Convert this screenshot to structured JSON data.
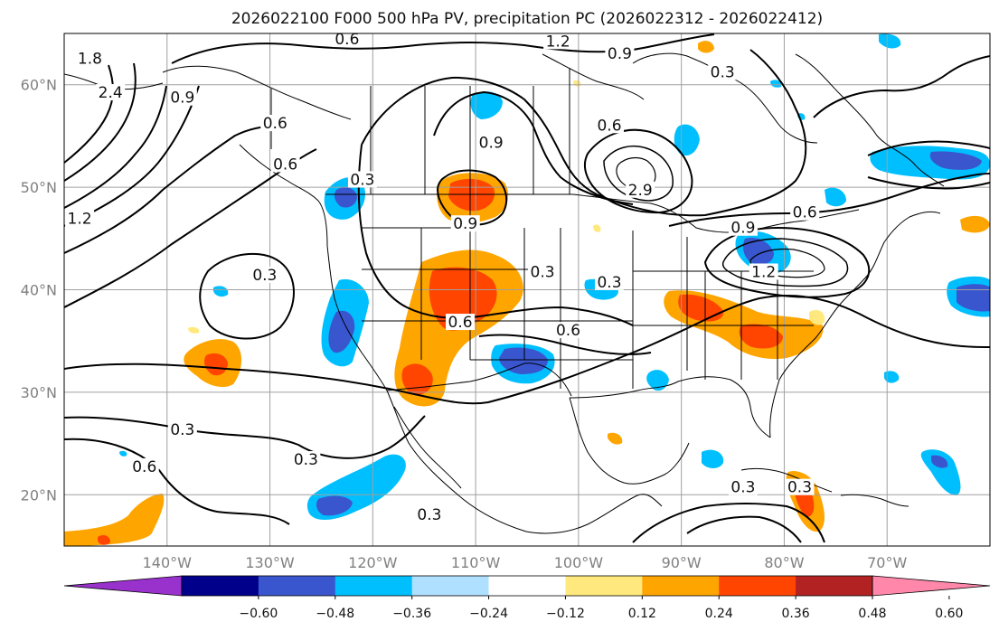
{
  "title": "2026022100 F000 500 hPa PV, precipitation PC (2026022312 - 2026022412)",
  "map": {
    "lon_range": [
      -150,
      -60
    ],
    "lat_range": [
      15,
      65
    ],
    "lon_ticks": [
      {
        "value": -140,
        "label": "140°W"
      },
      {
        "value": -130,
        "label": "130°W"
      },
      {
        "value": -120,
        "label": "120°W"
      },
      {
        "value": -110,
        "label": "110°W"
      },
      {
        "value": -100,
        "label": "100°W"
      },
      {
        "value": -90,
        "label": "90°W"
      },
      {
        "value": -80,
        "label": "80°W"
      },
      {
        "value": -70,
        "label": "70°W"
      }
    ],
    "lat_ticks": [
      {
        "value": 20,
        "label": "20°N"
      },
      {
        "value": 30,
        "label": "30°N"
      },
      {
        "value": 40,
        "label": "40°N"
      },
      {
        "value": 50,
        "label": "50°N"
      },
      {
        "value": 60,
        "label": "60°N"
      }
    ],
    "contour_labels": [
      {
        "text": "0.6",
        "lon": -122.5,
        "lat": 64.2
      },
      {
        "text": "1.2",
        "lon": -102,
        "lat": 64.0
      },
      {
        "text": "0.9",
        "lon": -96,
        "lat": 62.8
      },
      {
        "text": "0.3",
        "lon": -86,
        "lat": 61.0
      },
      {
        "text": "1.8",
        "lon": -147.5,
        "lat": 62.3
      },
      {
        "text": "2.4",
        "lon": -145.5,
        "lat": 59.0
      },
      {
        "text": "0.9",
        "lon": -138.5,
        "lat": 58.5
      },
      {
        "text": "0.6",
        "lon": -129.5,
        "lat": 56.0
      },
      {
        "text": "0.6",
        "lon": -128.5,
        "lat": 52.0
      },
      {
        "text": "0.3",
        "lon": -121,
        "lat": 50.5
      },
      {
        "text": "0.9",
        "lon": -108.5,
        "lat": 54.1
      },
      {
        "text": "0.6",
        "lon": -97,
        "lat": 55.8
      },
      {
        "text": "2.9",
        "lon": -94,
        "lat": 49.5
      },
      {
        "text": "0.9",
        "lon": -111,
        "lat": 46.2
      },
      {
        "text": "0.6",
        "lon": -78,
        "lat": 47.3
      },
      {
        "text": "0.9",
        "lon": -84,
        "lat": 45.8
      },
      {
        "text": "1.2",
        "lon": -82,
        "lat": 41.5
      },
      {
        "text": "0.3",
        "lon": -103.5,
        "lat": 41.5
      },
      {
        "text": "0.3",
        "lon": -97,
        "lat": 40.5
      },
      {
        "text": "0.3",
        "lon": -130.5,
        "lat": 41.2
      },
      {
        "text": "0.6",
        "lon": -111.5,
        "lat": 36.6
      },
      {
        "text": "0.6",
        "lon": -101,
        "lat": 35.8
      },
      {
        "text": "1.2",
        "lon": -148.5,
        "lat": 46.7
      },
      {
        "text": "0.3",
        "lon": -138.5,
        "lat": 26.1
      },
      {
        "text": "0.6",
        "lon": -142.2,
        "lat": 22.5
      },
      {
        "text": "0.3",
        "lon": -126.5,
        "lat": 23.2
      },
      {
        "text": "0.3",
        "lon": -84,
        "lat": 20.5
      },
      {
        "text": "0.3",
        "lon": -78.5,
        "lat": 20.5
      },
      {
        "text": "0.3",
        "lon": -114.5,
        "lat": 17.8
      }
    ]
  },
  "colorbar": {
    "colors": [
      "#9932CC",
      "#00008B",
      "#3A56CF",
      "#00BFFF",
      "#B0E0FF",
      "#FFFFFF",
      "#FFE97F",
      "#FFA500",
      "#FF4500",
      "#B22222",
      "#FF88AA"
    ],
    "tick_labels": [
      "−0.60",
      "−0.48",
      "−0.36",
      "−0.24",
      "−0.12",
      "0.12",
      "0.24",
      "0.36",
      "0.48",
      "0.60"
    ]
  }
}
